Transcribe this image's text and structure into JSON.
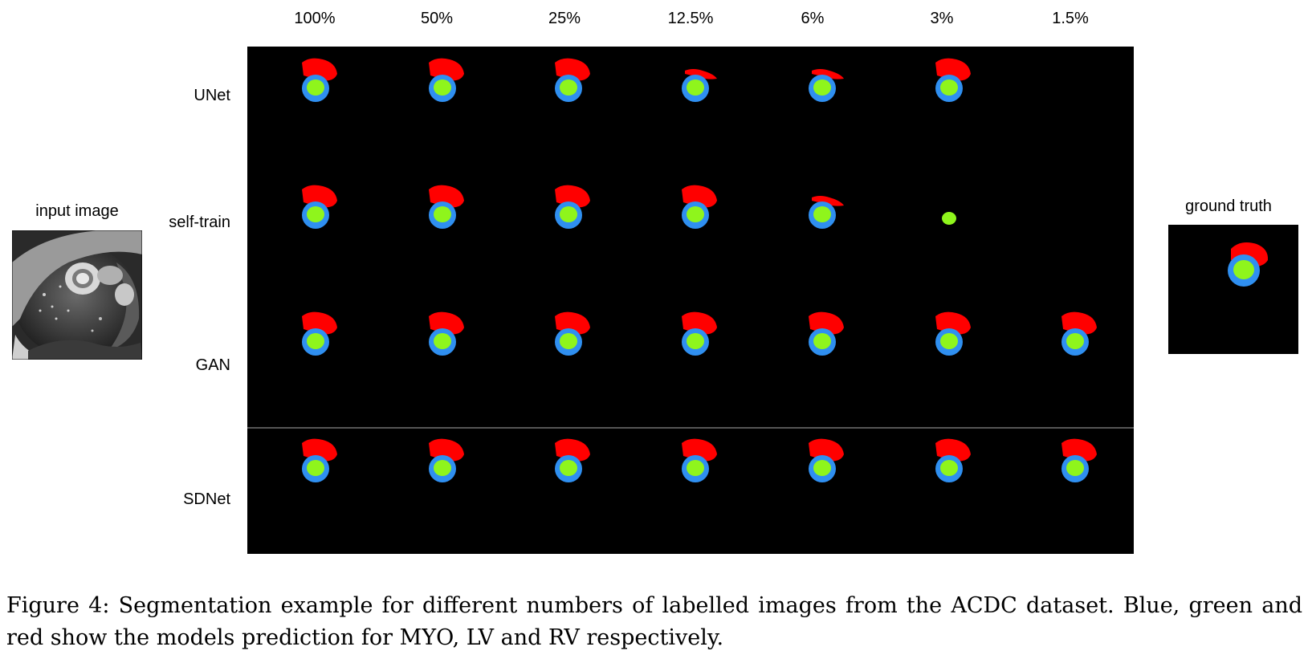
{
  "columns": [
    "100%",
    "50%",
    "25%",
    "12.5%",
    "6%",
    "3%",
    "1.5%"
  ],
  "rows": [
    "UNet",
    "self-train",
    "GAN",
    "SDNet"
  ],
  "input_label": "input image",
  "ground_truth_label": "ground truth",
  "caption": "Figure 4: Segmentation example for different numbers of labelled images from the ACDC dataset. Blue, green and red show the models prediction for MYO, LV and RV respectively.",
  "colors": {
    "myo": "#2f8ff0",
    "lv": "#8ff51c",
    "rv": "#ff0000",
    "background": "#000000"
  },
  "cells": [
    [
      "full",
      "full",
      "full",
      "partial",
      "partial",
      "full",
      "empty"
    ],
    [
      "full",
      "full",
      "full",
      "full",
      "partial",
      "lv-only",
      "empty"
    ],
    [
      "full",
      "full",
      "full",
      "full",
      "full",
      "full",
      "full"
    ],
    [
      "full",
      "full",
      "full",
      "full",
      "full",
      "full",
      "full"
    ]
  ]
}
